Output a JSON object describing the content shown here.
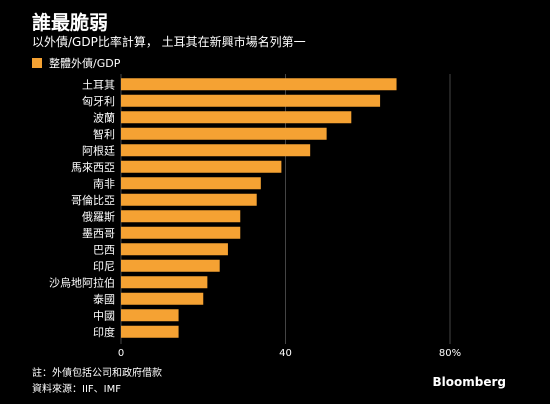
{
  "colors": {
    "background": "#000000",
    "bar": "#f5a233",
    "text": "#ffffff",
    "grid": "#444444"
  },
  "header": {
    "title": "誰最脆弱",
    "subtitle": "以外債/GDP比率計算， 土耳其在新興市場名列第一"
  },
  "legend": {
    "label": "整體外債/GDP"
  },
  "footer": {
    "note": "註：外債包括公司和政府借款",
    "source": "資料來源：IIF、IMF",
    "brand": "Bloomberg"
  },
  "chart_data": {
    "type": "bar",
    "orientation": "horizontal",
    "categories": [
      "土耳其",
      "匈牙利",
      "波蘭",
      "智利",
      "阿根廷",
      "馬來西亞",
      "南非",
      "哥倫比亞",
      "俄羅斯",
      "墨西哥",
      "巴西",
      "印尼",
      "沙烏地阿拉伯",
      "泰國",
      "中國",
      "印度"
    ],
    "series": [
      {
        "name": "整體外債/GDP",
        "values": [
          67,
          63,
          56,
          50,
          46,
          39,
          34,
          33,
          29,
          29,
          26,
          24,
          21,
          20,
          14,
          14
        ]
      }
    ],
    "xlim": [
      0,
      80
    ],
    "xticks": [
      0,
      40,
      80
    ],
    "xtick_labels": [
      "0",
      "40",
      "80%"
    ],
    "grid": true,
    "legend_position": "top-left"
  }
}
